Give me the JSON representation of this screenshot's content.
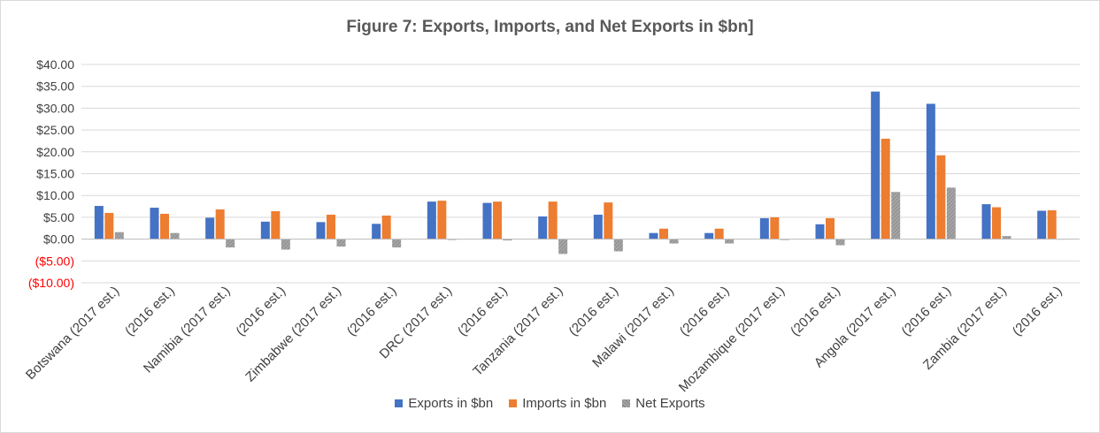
{
  "chart_data": {
    "type": "bar",
    "title": "Figure 7: Exports, Imports, and Net Exports in $bn]",
    "categories": [
      "Botswana (2017 est.)",
      "(2016 est.)",
      "Namibia  (2017 est.)",
      "(2016 est.)",
      "Zimbabwe (2017 est.)",
      "(2016 est.)",
      "DRC (2017 est.)",
      "(2016 est.)",
      "Tanzania (2017 est.)",
      "(2016 est.)",
      "Malawi (2017 est.)",
      "(2016 est.)",
      "Mozambique (2017 est.)",
      "(2016 est.)",
      "Angola (2017 est.)",
      "(2016 est.)",
      "Zambia (2017 est.)",
      "(2016 est.)"
    ],
    "series": [
      {
        "name": "Exports in $bn",
        "color": "#4472c4",
        "values": [
          7.6,
          7.2,
          4.9,
          4.0,
          3.9,
          3.5,
          8.6,
          8.3,
          5.2,
          5.6,
          1.4,
          1.4,
          4.8,
          3.4,
          33.8,
          31.0,
          8.0,
          6.5
        ]
      },
      {
        "name": "Imports in $bn",
        "color": "#ed7d31",
        "values": [
          6.0,
          5.8,
          6.8,
          6.4,
          5.6,
          5.4,
          8.8,
          8.6,
          8.6,
          8.4,
          2.4,
          2.4,
          5.0,
          4.8,
          23.0,
          19.2,
          7.3,
          6.6
        ]
      },
      {
        "name": "Net Exports",
        "color": "#a5a5a5",
        "values": [
          1.6,
          1.4,
          -1.9,
          -2.4,
          -1.7,
          -1.9,
          -0.2,
          -0.3,
          -3.4,
          -2.8,
          -1.0,
          -1.0,
          -0.2,
          -1.4,
          10.8,
          11.8,
          0.7,
          -0.1
        ]
      }
    ],
    "ylim": [
      -10,
      40
    ],
    "yticks": [
      40,
      35,
      30,
      25,
      20,
      15,
      10,
      5,
      0,
      -5,
      -10
    ],
    "ytick_labels": [
      "$40.00",
      "$35.00",
      "$30.00",
      "$25.00",
      "$20.00",
      "$15.00",
      "$10.00",
      "$5.00",
      "$0.00",
      "($5.00)",
      "($10.00)"
    ],
    "negative_tick_color": "#ff0000",
    "gridlines": true,
    "legend_position": "bottom"
  }
}
